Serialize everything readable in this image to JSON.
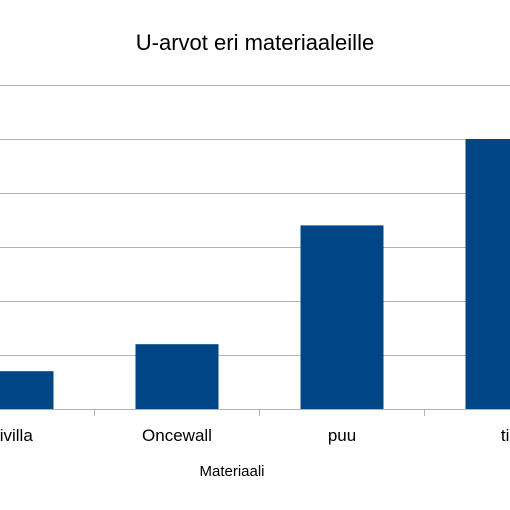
{
  "chart_data": {
    "type": "bar",
    "title": "U-arvot eri materiaaleille",
    "xlabel": "Materiaali",
    "ylabel": "",
    "categories": [
      "sivilla",
      "Oncewall",
      "puu",
      "tii"
    ],
    "values": [
      0.07,
      0.12,
      0.34,
      0.5
    ],
    "ylim": [
      0,
      0.6
    ],
    "grid": true,
    "bar_color": "#004586",
    "grid_color": "#b3b3b3"
  }
}
